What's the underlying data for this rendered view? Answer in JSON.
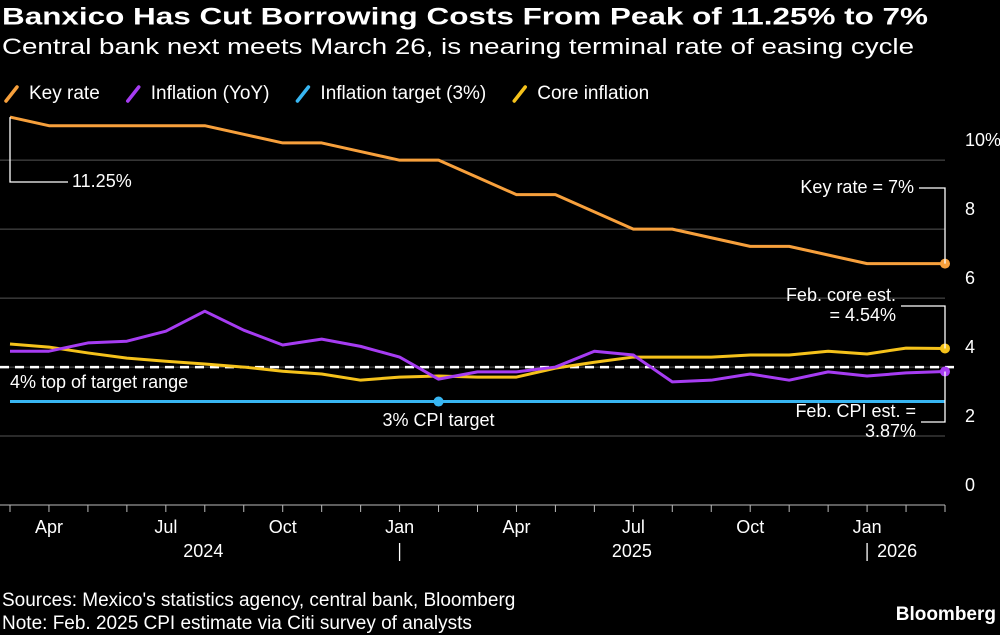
{
  "chart_data": {
    "type": "line",
    "title": "Banxico Has Cut Borrowing Costs From Peak of 11.25% to 7%",
    "subtitle": "Central bank next meets March 26, is nearing terminal rate of easing cycle",
    "x": [
      "2024-03",
      "2024-04",
      "2024-05",
      "2024-06",
      "2024-07",
      "2024-08",
      "2024-09",
      "2024-10",
      "2024-11",
      "2024-12",
      "2025-01",
      "2025-02",
      "2025-03",
      "2025-04",
      "2025-05",
      "2025-06",
      "2025-07",
      "2025-08",
      "2025-09",
      "2025-10",
      "2025-11",
      "2025-12",
      "2026-01",
      "2026-02",
      "2026-03"
    ],
    "xlim": [
      "2024-03",
      "2026-03"
    ],
    "xticks": [
      {
        "value": "2024-04",
        "label": "Apr"
      },
      {
        "value": "2024-07",
        "label": "Jul"
      },
      {
        "value": "2024-10",
        "label": "Oct"
      },
      {
        "value": "2025-01",
        "label": "Jan"
      },
      {
        "value": "2025-04",
        "label": "Apr"
      },
      {
        "value": "2025-07",
        "label": "Jul"
      },
      {
        "value": "2025-10",
        "label": "Oct"
      },
      {
        "value": "2026-01",
        "label": "Jan"
      }
    ],
    "years": [
      "2024",
      "2025",
      "2026"
    ],
    "series": [
      {
        "name": "Key rate",
        "color": "#f7a03c",
        "values": [
          11.25,
          11.0,
          11.0,
          11.0,
          11.0,
          11.0,
          10.75,
          10.5,
          10.5,
          10.25,
          10.0,
          10.0,
          9.5,
          9.0,
          9.0,
          8.5,
          8.0,
          8.0,
          7.75,
          7.5,
          7.5,
          7.25,
          7.0,
          7.0,
          7.0
        ]
      },
      {
        "name": "Inflation (YoY)",
        "color": "#a63cf2",
        "values": [
          4.46,
          4.46,
          4.7,
          4.75,
          5.04,
          5.62,
          5.07,
          4.64,
          4.81,
          4.6,
          4.29,
          3.65,
          3.86,
          3.86,
          4.0,
          4.46,
          4.35,
          3.57,
          3.62,
          3.8,
          3.62,
          3.86,
          3.74,
          3.83,
          3.87
        ]
      },
      {
        "name": "Inflation target (3%)",
        "color": "#38b6f2",
        "values": [
          3,
          3,
          3,
          3,
          3,
          3,
          3,
          3,
          3,
          3,
          3,
          3,
          3,
          3,
          3,
          3,
          3,
          3,
          3,
          3,
          3,
          3,
          3,
          3,
          3
        ]
      },
      {
        "name": "Core inflation",
        "color": "#f5c21b",
        "values": [
          4.67,
          4.58,
          4.41,
          4.26,
          4.17,
          4.09,
          4.0,
          3.88,
          3.8,
          3.62,
          3.71,
          3.74,
          3.71,
          3.71,
          3.97,
          4.14,
          4.29,
          4.29,
          4.29,
          4.35,
          4.35,
          4.46,
          4.38,
          4.55,
          4.54
        ]
      }
    ],
    "ylim": [
      0,
      11.6
    ],
    "yticks": [
      0,
      2,
      4,
      6,
      8,
      {
        "value": 10,
        "label": "10%"
      }
    ],
    "grid": true,
    "reference_lines": [
      {
        "value": 4,
        "label": "4% top of target range",
        "color": "#ffffff"
      }
    ],
    "annotations": {
      "start": "11.25%",
      "key_end": "Key rate = 7%",
      "core_end": [
        "Feb. core est.",
        "= 4.54%"
      ],
      "cpi_end": [
        "Feb. CPI est. =",
        "3.87%"
      ],
      "target": "3% CPI target"
    },
    "source": "Sources: Mexico's statistics agency, central bank, Bloomberg",
    "note": "Note: Feb. 2025 CPI estimate via Citi survey of analysts",
    "brand": "Bloomberg"
  }
}
